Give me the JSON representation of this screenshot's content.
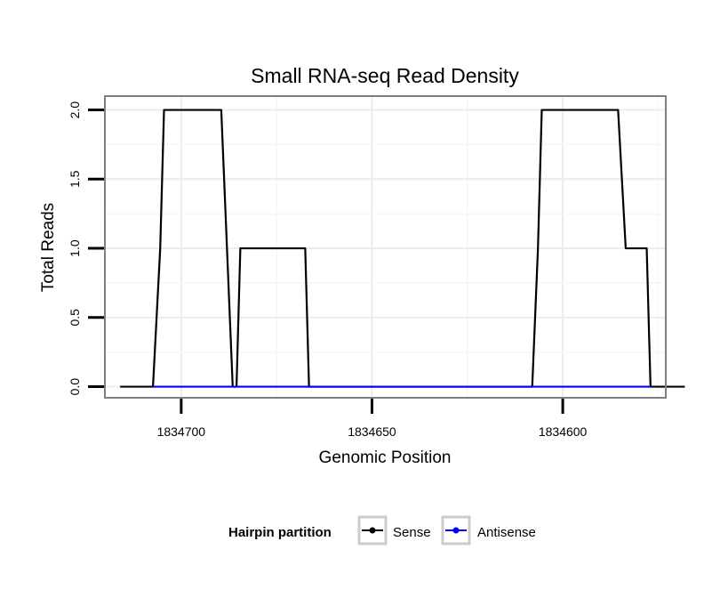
{
  "chart_data": {
    "type": "line",
    "title": "Small RNA-seq Read Density",
    "xlabel": "Genomic Position",
    "ylabel": "Total Reads",
    "x_reversed": true,
    "xlim": [
      1834573,
      1834720
    ],
    "ylim": [
      -0.08,
      2.1
    ],
    "x_ticks": [
      1834700,
      1834650,
      1834600
    ],
    "x_tick_labels": [
      "1834700",
      "1834650",
      "1834600"
    ],
    "y_ticks": [
      0,
      0.5,
      1,
      1.5,
      2
    ],
    "y_tick_labels": [
      "0.0",
      "0.5",
      "1.0",
      "1.5",
      "2.0"
    ],
    "grid": true,
    "legend": {
      "title": "Hairpin partition",
      "position": "bottom"
    },
    "series": [
      {
        "name": "Sense",
        "color": "#000000",
        "x": [
          1834716,
          1834707.4,
          1834705.5,
          1834704.5,
          1834689.5,
          1834688,
          1834686.5,
          1834685.5,
          1834684.5,
          1834667.5,
          1834666.5,
          1834608,
          1834606.5,
          1834605.5,
          1834585.5,
          1834583.5,
          1834578,
          1834577,
          1834576.5,
          1834568
        ],
        "values": [
          0,
          0,
          1,
          2,
          2,
          1,
          0,
          0,
          1,
          1,
          0,
          0,
          1,
          2,
          2,
          1,
          1,
          0,
          0,
          0
        ]
      },
      {
        "name": "Antisense",
        "color": "#0000ff",
        "x": [
          1834707.4,
          1834666.5,
          1834606.5,
          1834577
        ],
        "values": [
          0,
          0,
          0,
          0
        ]
      }
    ]
  }
}
